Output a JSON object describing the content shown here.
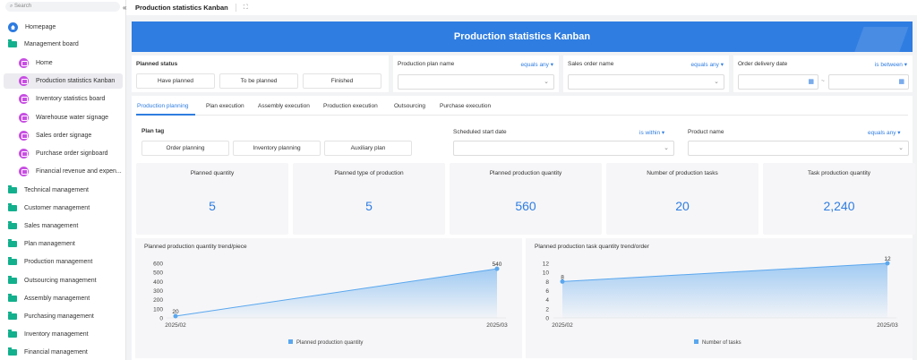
{
  "sidebar": {
    "search_placeholder": "Search",
    "items": [
      {
        "label": "Homepage",
        "type": "home"
      },
      {
        "label": "Management board",
        "type": "folder"
      },
      {
        "label": "Home",
        "type": "board"
      },
      {
        "label": "Production statistics Kanban",
        "type": "board",
        "selected": true
      },
      {
        "label": "Inventory statistics board",
        "type": "board"
      },
      {
        "label": "Warehouse water signage",
        "type": "board"
      },
      {
        "label": "Sales order signage",
        "type": "board"
      },
      {
        "label": "Purchase order signboard",
        "type": "board"
      },
      {
        "label": "Financial revenue and expen...",
        "type": "board"
      },
      {
        "label": "Technical management",
        "type": "folder"
      },
      {
        "label": "Customer management",
        "type": "folder"
      },
      {
        "label": "Sales management",
        "type": "folder"
      },
      {
        "label": "Plan management",
        "type": "folder"
      },
      {
        "label": "Production management",
        "type": "folder"
      },
      {
        "label": "Outsourcing management",
        "type": "folder"
      },
      {
        "label": "Assembly management",
        "type": "folder"
      },
      {
        "label": "Purchasing management",
        "type": "folder"
      },
      {
        "label": "Inventory management",
        "type": "folder"
      },
      {
        "label": "Financial management",
        "type": "folder"
      }
    ]
  },
  "header": {
    "title": "Production statistics Kanban",
    "collapse_icon": "«",
    "fullscreen_icon": "⛶"
  },
  "banner": {
    "title": "Production statistics Kanban"
  },
  "filters": {
    "planned_status": {
      "label": "Planned status",
      "options": [
        "Have planned",
        "To be planned",
        "Finished"
      ]
    },
    "production_plan_name": {
      "label": "Production plan name",
      "operator": "equals any ▾"
    },
    "sales_order_name": {
      "label": "Sales order name",
      "operator": "equals any ▾"
    },
    "order_delivery_date": {
      "label": "Order delivery date",
      "operator": "is between ▾",
      "separator": "~"
    }
  },
  "tabs": [
    "Production planning",
    "Plan execution",
    "Assembly execution",
    "Production execution",
    "Outsourcing",
    "Purchase execution"
  ],
  "sub_filters": {
    "plan_tag": {
      "label": "Plan tag",
      "options": [
        "Order planning",
        "Inventory planning",
        "Auxiliary plan"
      ]
    },
    "scheduled_start_date": {
      "label": "Scheduled start date",
      "operator": "is within ▾"
    },
    "product_name": {
      "label": "Product name",
      "operator": "equals any ▾"
    }
  },
  "stats": [
    {
      "title": "Planned quantity",
      "value": "5"
    },
    {
      "title": "Planned type of production",
      "value": "5"
    },
    {
      "title": "Planned production quantity",
      "value": "560"
    },
    {
      "title": "Number of production tasks",
      "value": "20"
    },
    {
      "title": "Task production quantity",
      "value": "2,240"
    }
  ],
  "chart_data": [
    {
      "type": "area",
      "title": "Planned production quantity trend/piece",
      "x": [
        "2025/02",
        "2025/03"
      ],
      "series": [
        {
          "name": "Planned production quantity",
          "values": [
            20,
            540
          ]
        }
      ],
      "ylim": [
        0,
        600
      ],
      "yticks": [
        0,
        100,
        200,
        300,
        400,
        500,
        600
      ],
      "color": "#5aa7ee",
      "legend": "bottom"
    },
    {
      "type": "area",
      "title": "Planned production task quantity trend/order",
      "x": [
        "2025/02",
        "2025/03"
      ],
      "series": [
        {
          "name": "Number of tasks",
          "values": [
            8,
            12
          ]
        }
      ],
      "ylim": [
        0,
        12
      ],
      "yticks": [
        0,
        2,
        4,
        6,
        8,
        10,
        12
      ],
      "color": "#5aa7ee",
      "legend": "bottom"
    }
  ]
}
